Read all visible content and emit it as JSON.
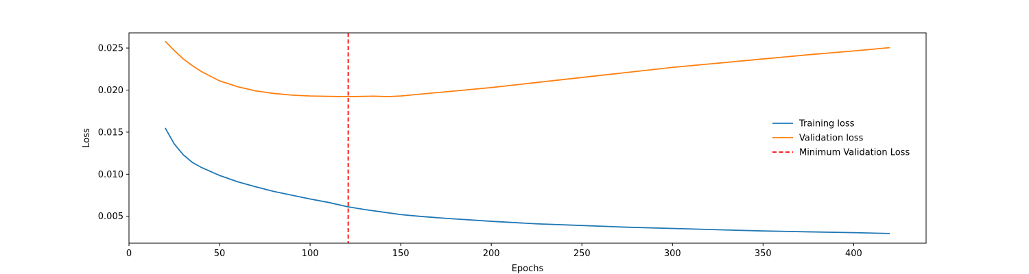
{
  "chart_data": {
    "type": "line",
    "title": "",
    "xlabel": "Epochs",
    "ylabel": "Loss",
    "xlim": [
      0,
      440
    ],
    "ylim": [
      0.0018,
      0.0268
    ],
    "xticks": [
      0,
      50,
      100,
      150,
      200,
      250,
      300,
      350,
      400
    ],
    "xtick_labels": [
      "0",
      "50",
      "100",
      "150",
      "200",
      "250",
      "300",
      "350",
      "400"
    ],
    "yticks": [
      0.005,
      0.01,
      0.015,
      0.02,
      0.025
    ],
    "ytick_labels": [
      "0.005",
      "0.010",
      "0.015",
      "0.020",
      "0.025"
    ],
    "grid": false,
    "legend_position": "center-right",
    "series": [
      {
        "name": "Training loss",
        "color": "#1f77b4",
        "style": "solid",
        "x": [
          20,
          25,
          30,
          35,
          40,
          50,
          60,
          70,
          80,
          90,
          100,
          110,
          121,
          130,
          140,
          150,
          160,
          175,
          200,
          225,
          250,
          275,
          300,
          325,
          350,
          375,
          400,
          420
        ],
        "y": [
          0.0155,
          0.0136,
          0.0123,
          0.0114,
          0.0108,
          0.00985,
          0.0091,
          0.0085,
          0.00795,
          0.0075,
          0.00705,
          0.00665,
          0.00612,
          0.0058,
          0.0055,
          0.0052,
          0.005,
          0.00475,
          0.0044,
          0.0041,
          0.0039,
          0.0037,
          0.00355,
          0.0034,
          0.00325,
          0.00315,
          0.00305,
          0.00295
        ]
      },
      {
        "name": "Validation loss",
        "color": "#ff7f0e",
        "style": "solid",
        "x": [
          20,
          25,
          30,
          35,
          40,
          50,
          60,
          70,
          80,
          90,
          100,
          110,
          121,
          130,
          135,
          143,
          150,
          160,
          175,
          200,
          225,
          250,
          275,
          300,
          325,
          350,
          375,
          400,
          420
        ],
        "y": [
          0.0258,
          0.0247,
          0.0237,
          0.0229,
          0.0222,
          0.0211,
          0.0204,
          0.0199,
          0.0196,
          0.0194,
          0.0193,
          0.01925,
          0.01922,
          0.01925,
          0.01928,
          0.01922,
          0.0193,
          0.0195,
          0.0198,
          0.0203,
          0.0209,
          0.0215,
          0.0221,
          0.0227,
          0.0232,
          0.0237,
          0.0242,
          0.02465,
          0.02505
        ]
      }
    ],
    "vlines": [
      {
        "name": "Minimum Validation Loss",
        "x": 121,
        "color": "#ff0000",
        "style": "dashed"
      }
    ]
  }
}
